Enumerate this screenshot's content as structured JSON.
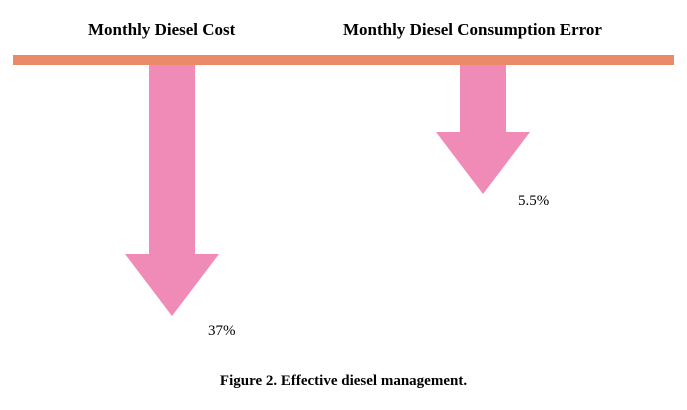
{
  "diagram": {
    "items": [
      {
        "heading": "Monthly Diesel Cost",
        "change": 37,
        "label": "37%"
      },
      {
        "heading": "Monthly Diesel Consumption Error",
        "change": 5.5,
        "label": "5.5%"
      }
    ],
    "caption": "Figure 2. Effective diesel management."
  },
  "colors": {
    "baseline": "#EB8A66",
    "arrow": "#F08AB6",
    "text": "#000000"
  }
}
